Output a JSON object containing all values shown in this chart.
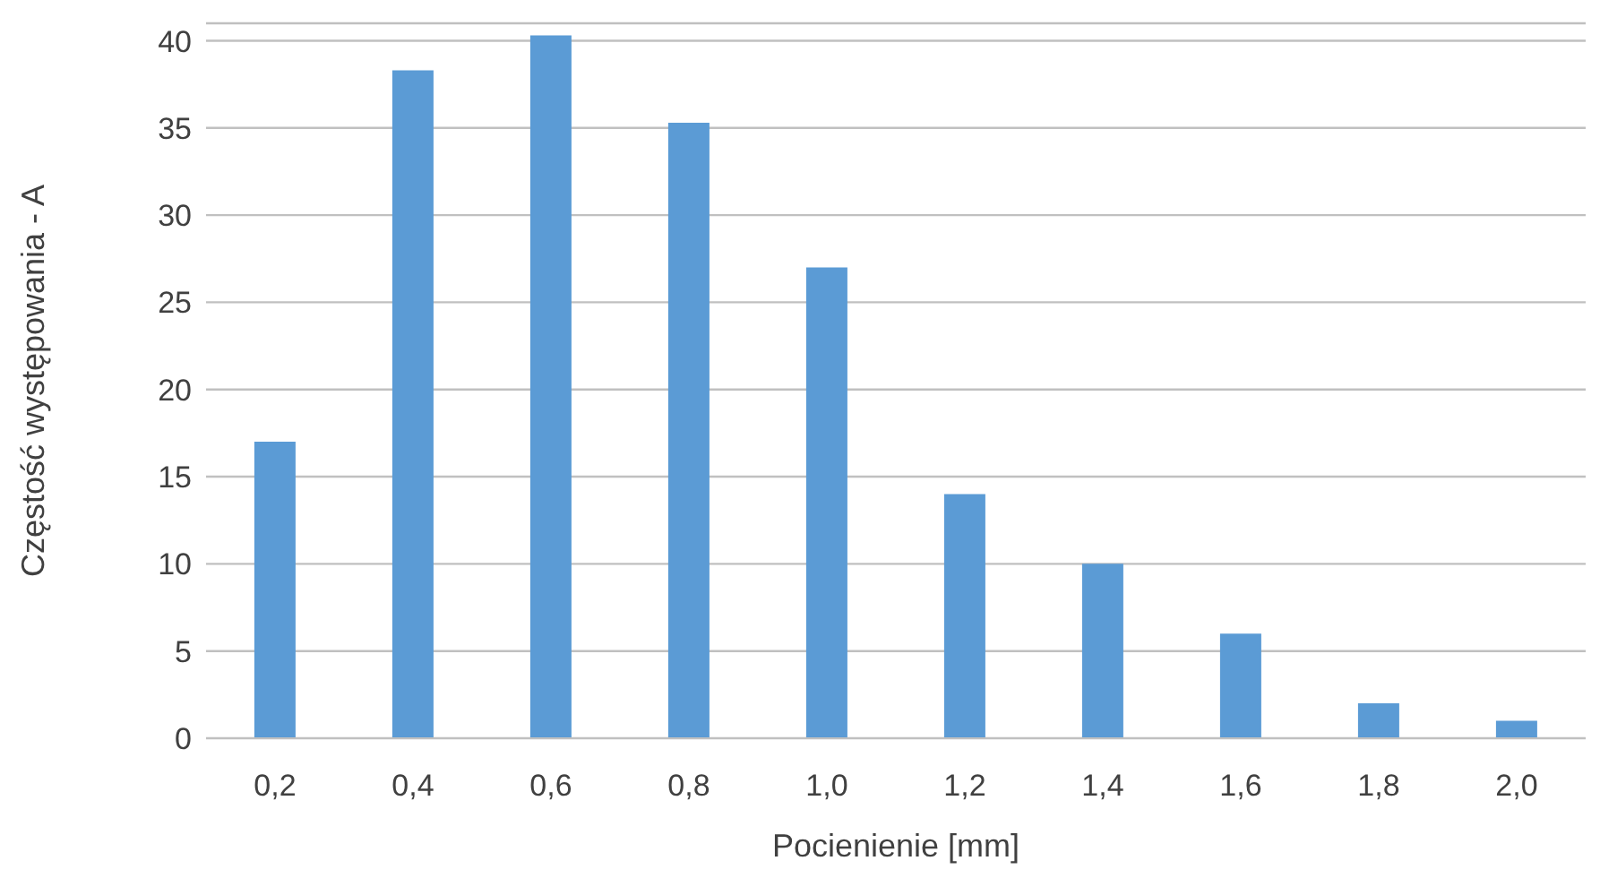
{
  "chart_data": {
    "type": "bar",
    "xlabel": "Pocienienie [mm]",
    "ylabel": "Częstość występowania - A",
    "categories": [
      "0,2",
      "0,4",
      "0,6",
      "0,8",
      "1,0",
      "1,2",
      "1,4",
      "1,6",
      "1,8",
      "2,0"
    ],
    "values": [
      17,
      38.3,
      40.3,
      35.3,
      27,
      14,
      10,
      6,
      2,
      1
    ],
    "color": "#5b9bd5",
    "ylim": [
      0,
      41
    ],
    "yticks": [
      0,
      5,
      10,
      15,
      20,
      25,
      30,
      35,
      40
    ],
    "grid": "y"
  }
}
